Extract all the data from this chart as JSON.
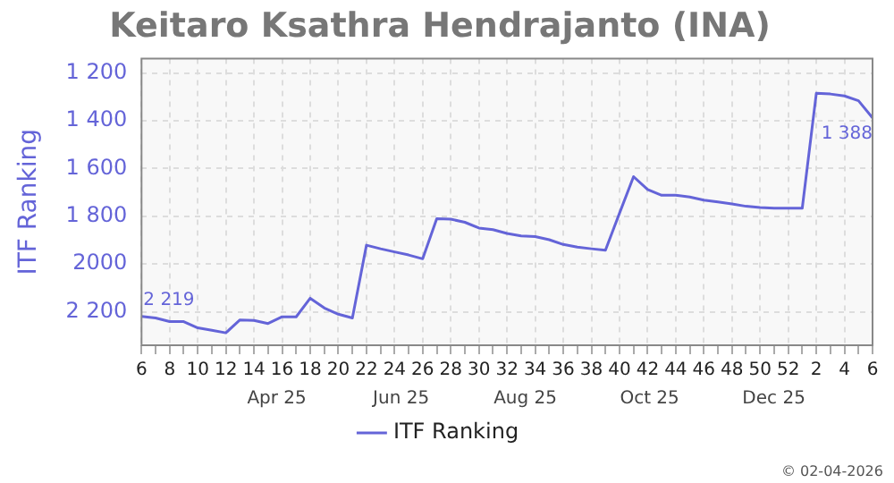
{
  "chart_data": {
    "type": "line",
    "title": "Keitaro Ksathra Hendrajanto (INA)",
    "ylabel": "ITF Ranking",
    "categories": [
      "6",
      null,
      "8",
      null,
      "10",
      null,
      "12",
      null,
      "14",
      null,
      "16",
      null,
      "18",
      null,
      "20",
      null,
      "22",
      null,
      "24",
      null,
      "26",
      null,
      "28",
      null,
      "30",
      null,
      "32",
      null,
      "34",
      null,
      "36",
      null,
      "38",
      null,
      "40",
      null,
      "42",
      null,
      "44",
      null,
      "46",
      null,
      "48",
      null,
      "50",
      null,
      "52",
      null,
      "2",
      null,
      "4",
      null,
      "6"
    ],
    "series": [
      {
        "name": "ITF Ranking",
        "color": "#6464d8",
        "values": [
          2219,
          2226,
          2241,
          2241,
          2267,
          2277,
          2288,
          2234,
          2236,
          2249,
          2221,
          2221,
          2143,
          2184,
          2210,
          2226,
          1921,
          1936,
          1949,
          1962,
          1978,
          1810,
          1812,
          1825,
          1849,
          1856,
          1872,
          1882,
          1885,
          1898,
          1918,
          1929,
          1936,
          1942,
          1787,
          1634,
          1688,
          1712,
          1712,
          1719,
          1732,
          1740,
          1748,
          1758,
          1763,
          1766,
          1766,
          1766,
          1285,
          1288,
          1296,
          1316,
          1388
        ],
        "value_labels": [
          "2 219",
          null,
          null,
          null,
          null,
          null,
          null,
          null,
          null,
          null,
          null,
          null,
          null,
          null,
          null,
          null,
          null,
          null,
          null,
          null,
          null,
          null,
          null,
          null,
          null,
          null,
          null,
          null,
          null,
          null,
          null,
          null,
          null,
          null,
          null,
          null,
          null,
          null,
          null,
          null,
          null,
          null,
          null,
          null,
          null,
          null,
          null,
          null,
          null,
          null,
          null,
          null,
          "1 388"
        ]
      }
    ],
    "ylim": [
      2340,
      1140
    ],
    "yticks": [
      {
        "value": 1200,
        "label": "1 200"
      },
      {
        "value": 1400,
        "label": "1 400"
      },
      {
        "value": 1600,
        "label": "1 600"
      },
      {
        "value": 1800,
        "label": "1 800"
      },
      {
        "value": 2000,
        "label": "2000"
      },
      {
        "value": 2200,
        "label": "2 200"
      }
    ],
    "grid": true,
    "legend": "bottom",
    "marker": "none",
    "line_style": "solid",
    "annotations": [
      "Apr 25",
      "Jun 25",
      "Aug 25",
      "Oct 25",
      "Dec 25",
      "© 02-04-2026"
    ]
  }
}
